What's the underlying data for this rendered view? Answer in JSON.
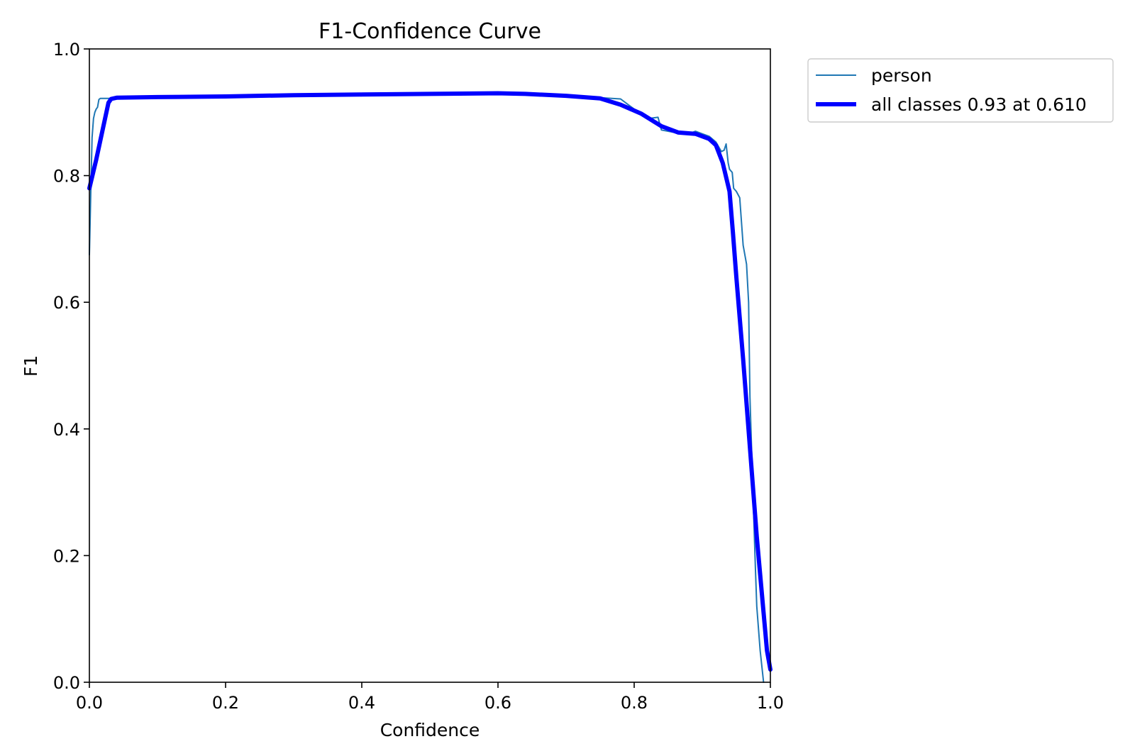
{
  "chart_data": {
    "type": "line",
    "title": "F1-Confidence Curve",
    "xlabel": "Confidence",
    "ylabel": "F1",
    "xlim": [
      0.0,
      1.0
    ],
    "ylim": [
      0.0,
      1.0
    ],
    "xticks": [
      "0.0",
      "0.2",
      "0.4",
      "0.6",
      "0.8",
      "1.0"
    ],
    "yticks": [
      "0.0",
      "0.2",
      "0.4",
      "0.6",
      "0.8",
      "1.0"
    ],
    "grid": false,
    "legend_position": "outside upper right",
    "series": [
      {
        "name": "person",
        "color": "#1f77b4",
        "line_width": "thin",
        "x": [
          0.0,
          0.002,
          0.004,
          0.006,
          0.008,
          0.01,
          0.012,
          0.014,
          0.016,
          0.02,
          0.03,
          0.04,
          0.1,
          0.2,
          0.3,
          0.4,
          0.5,
          0.6,
          0.64,
          0.7,
          0.75,
          0.78,
          0.8,
          0.82,
          0.835,
          0.84,
          0.86,
          0.88,
          0.89,
          0.9,
          0.91,
          0.92,
          0.928,
          0.932,
          0.935,
          0.938,
          0.94,
          0.944,
          0.946,
          0.95,
          0.955,
          0.96,
          0.965,
          0.968,
          0.97,
          0.975,
          0.978,
          0.98,
          0.985,
          0.99
        ],
        "values": [
          0.675,
          0.77,
          0.86,
          0.89,
          0.9,
          0.905,
          0.908,
          0.92,
          0.922,
          0.922,
          0.922,
          0.923,
          0.924,
          0.925,
          0.927,
          0.928,
          0.929,
          0.93,
          0.93,
          0.927,
          0.923,
          0.921,
          0.905,
          0.89,
          0.892,
          0.872,
          0.868,
          0.866,
          0.87,
          0.866,
          0.862,
          0.853,
          0.838,
          0.84,
          0.85,
          0.82,
          0.81,
          0.805,
          0.78,
          0.775,
          0.765,
          0.69,
          0.66,
          0.6,
          0.45,
          0.28,
          0.18,
          0.12,
          0.05,
          0.0
        ]
      },
      {
        "name": "all classes 0.93 at 0.610",
        "color": "#0000ff",
        "line_width": "thick",
        "x": [
          0.0,
          0.01,
          0.02,
          0.028,
          0.032,
          0.04,
          0.1,
          0.2,
          0.3,
          0.4,
          0.5,
          0.6,
          0.64,
          0.7,
          0.75,
          0.78,
          0.81,
          0.84,
          0.865,
          0.89,
          0.91,
          0.92,
          0.93,
          0.94,
          0.945,
          0.95,
          0.96,
          0.97,
          0.98,
          0.99,
          0.995,
          1.0
        ],
        "values": [
          0.78,
          0.825,
          0.875,
          0.915,
          0.921,
          0.923,
          0.924,
          0.925,
          0.927,
          0.928,
          0.929,
          0.93,
          0.929,
          0.926,
          0.922,
          0.912,
          0.898,
          0.878,
          0.868,
          0.866,
          0.858,
          0.848,
          0.82,
          0.775,
          0.71,
          0.64,
          0.51,
          0.37,
          0.23,
          0.11,
          0.05,
          0.02
        ]
      }
    ]
  }
}
